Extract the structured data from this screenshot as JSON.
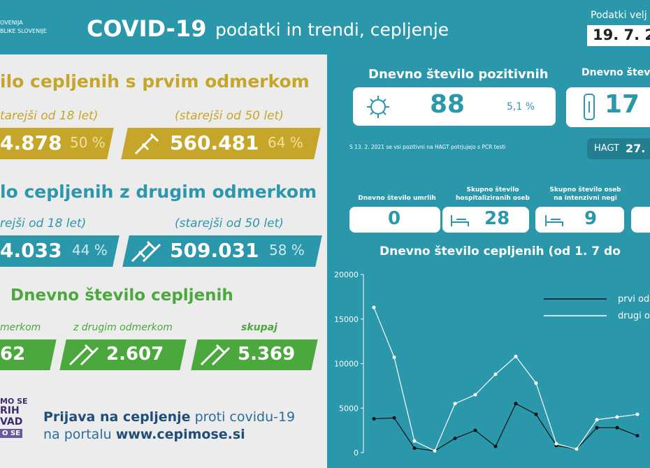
{
  "header": {
    "logo": [
      "OVENIJA",
      "BLIKE SLOVENIJE"
    ],
    "title": "COVID-19",
    "subtitle": "podatki in trendi, cepljenje",
    "valid_label": "Podatki velj",
    "date": "19. 7. 2"
  },
  "first_dose": {
    "title": "ilo cepljenih s prvim odmerkom",
    "groups": [
      {
        "label": "tarejši od 18 let)",
        "value": "4.878",
        "percent": "50 %"
      },
      {
        "label": "(starejši od 50 let)",
        "value": "560.481",
        "percent": "64 %"
      }
    ]
  },
  "second_dose": {
    "title": "lo cepljenih z drugim odmerkom",
    "groups": [
      {
        "label": "rejši od 18 let)",
        "value": "4.033",
        "percent": "44 %"
      },
      {
        "label": "(starejši od 50 let)",
        "value": "509.031",
        "percent": "58 %"
      }
    ]
  },
  "daily": {
    "title": "Dnevno število cepljenih",
    "items": [
      {
        "label": "merkom",
        "value": "62"
      },
      {
        "label": "z drugim odmerkom",
        "value": "2.607"
      },
      {
        "label": "skupaj",
        "value": "5.369"
      }
    ]
  },
  "footer": {
    "logo": [
      "MO SE",
      "RIH",
      "VAD",
      "O SE"
    ],
    "text_bold": "Prijava na cepljenje",
    "text": "proti covidu-19",
    "text2": "na portalu",
    "url": "www.cepimose.si"
  },
  "positive": {
    "title": "Dnevno število pozitivnih",
    "value": "88",
    "percent": "5,1 %",
    "note": "S 13. 2. 2021 se vsi pozitivni na HAGT potrjujejo s PCR testi"
  },
  "tests": {
    "title": "Dnevno števil",
    "value": "17",
    "hagt_label": "HAGT",
    "hagt_value": "27."
  },
  "stats": [
    {
      "label": "Dnevno število umrlih",
      "value": "0"
    },
    {
      "label": "Skupno število hospitaliziranih oseb",
      "value": "28"
    },
    {
      "label": "Skupno število oseb na intenzivni negi",
      "value": "9"
    }
  ],
  "chart_data": {
    "type": "line",
    "title": "Dnevno število cepljenih (od 1. 7 do",
    "categories": [
      null,
      null,
      null,
      null,
      null,
      null,
      null,
      null,
      null,
      null,
      null,
      null,
      null,
      null
    ],
    "series": [
      {
        "name": "prvi od",
        "color": "#111111",
        "values": [
          3800,
          3900,
          500,
          200,
          1600,
          2500,
          700,
          5500,
          4300,
          800,
          400,
          2800,
          2800,
          1900
        ]
      },
      {
        "name": "drugi o",
        "color": "#ffffff",
        "values": [
          16300,
          10700,
          1300,
          200,
          5500,
          6500,
          8800,
          10800,
          7800,
          1000,
          400,
          3700,
          4000,
          4300
        ]
      }
    ],
    "ylim": [
      0,
      20000
    ],
    "yticks": [
      0,
      5000,
      10000,
      15000,
      20000
    ]
  }
}
